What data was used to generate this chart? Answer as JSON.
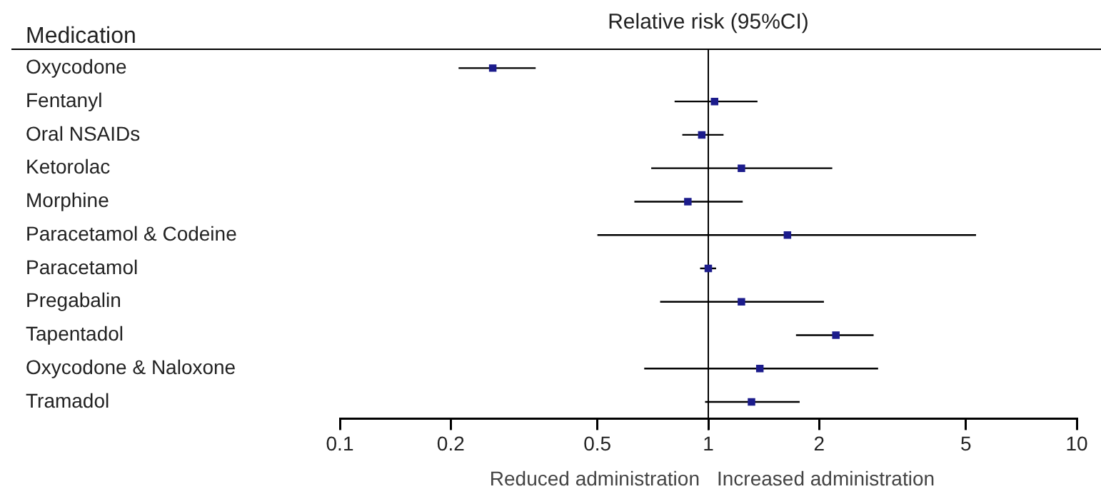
{
  "chart_data": {
    "type": "scatter",
    "orientation": "horizontal",
    "title": "Relative risk (95%CI)",
    "ylabel": "Medication",
    "categories": [
      "Oxycodone",
      "Fentanyl",
      "Oral NSAIDs",
      "Ketorolac",
      "Morphine",
      "Paracetamol & Codeine",
      "Paracetamol",
      "Pregabalin",
      "Tapentadol",
      "Oxycodone & Naloxone",
      "Tramadol"
    ],
    "series": [
      {
        "color": "#1c1c8c",
        "values": [
          0.26,
          1.04,
          0.96,
          1.23,
          0.88,
          1.64,
          1.0,
          1.23,
          2.22,
          1.38,
          1.31
        ],
        "errors": [
          [
            0.21,
            0.34
          ],
          [
            0.81,
            1.36
          ],
          [
            0.85,
            1.1
          ],
          [
            0.7,
            2.17
          ],
          [
            0.63,
            1.24
          ],
          [
            0.5,
            5.33
          ],
          [
            0.95,
            1.05
          ],
          [
            0.74,
            2.06
          ],
          [
            1.73,
            2.81
          ],
          [
            0.67,
            2.89
          ],
          [
            0.98,
            1.77
          ]
        ]
      }
    ],
    "log": "x",
    "xlim": [
      0.1,
      10
    ],
    "xticks": [
      0.1,
      0.2,
      0.5,
      1,
      2,
      5,
      10
    ],
    "grid": false,
    "ref_lines": [
      {
        "axis": "x",
        "value": 1,
        "color": "#000000"
      }
    ],
    "annotations": [
      "Reduced administration",
      "Increased administration"
    ]
  }
}
